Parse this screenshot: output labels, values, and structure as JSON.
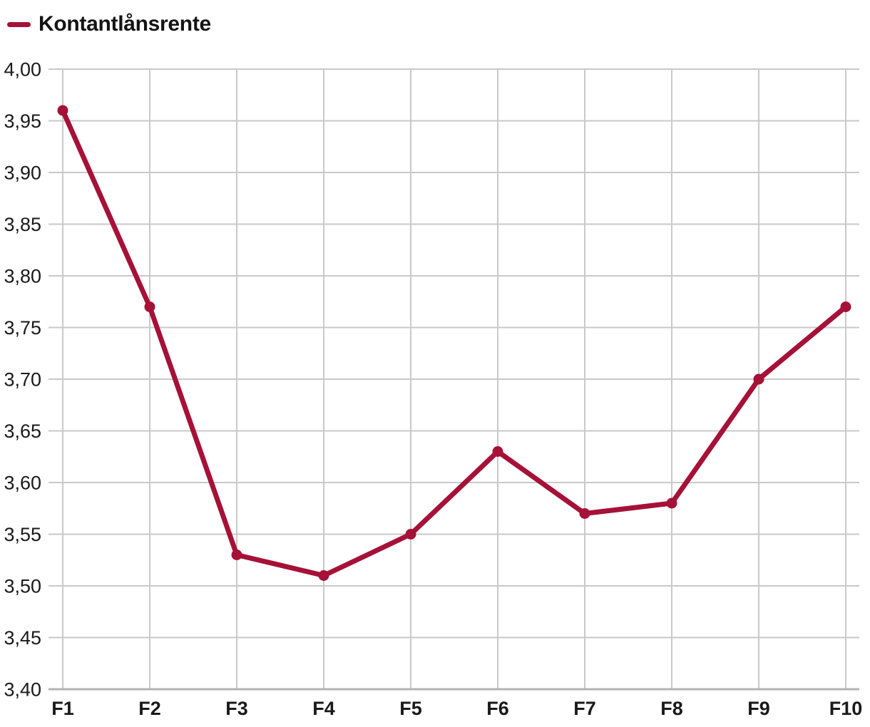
{
  "legend": {
    "label": "Kontantlånsrente"
  },
  "chart_data": {
    "type": "line",
    "title": "",
    "xlabel": "",
    "ylabel": "",
    "categories": [
      "F1",
      "F2",
      "F3",
      "F4",
      "F5",
      "F6",
      "F7",
      "F8",
      "F9",
      "F10"
    ],
    "series": [
      {
        "name": "Kontantlånsrente",
        "color": "#A61137",
        "values": [
          3.96,
          3.77,
          3.53,
          3.51,
          3.55,
          3.63,
          3.57,
          3.58,
          3.7,
          3.77
        ]
      }
    ],
    "ylim": [
      3.4,
      4.0
    ],
    "y_ticks": [
      {
        "value": 4.0,
        "label": "4,00"
      },
      {
        "value": 3.95,
        "label": "3,95"
      },
      {
        "value": 3.9,
        "label": "3,90"
      },
      {
        "value": 3.85,
        "label": "3,85"
      },
      {
        "value": 3.8,
        "label": "3,80"
      },
      {
        "value": 3.75,
        "label": "3,75"
      },
      {
        "value": 3.7,
        "label": "3,70"
      },
      {
        "value": 3.65,
        "label": "3,65"
      },
      {
        "value": 3.6,
        "label": "3,60"
      },
      {
        "value": 3.55,
        "label": "3,55"
      },
      {
        "value": 3.5,
        "label": "3,50"
      },
      {
        "value": 3.45,
        "label": "3,45"
      },
      {
        "value": 3.4,
        "label": "3,40"
      }
    ],
    "decimal_separator": ",",
    "grid": true,
    "legend_position": "top-left",
    "marker": "circle",
    "colors": {
      "gridline": "#C9C9C9",
      "axis_line": "#B3B3B3",
      "tick_text": "#1A1A1A"
    }
  }
}
